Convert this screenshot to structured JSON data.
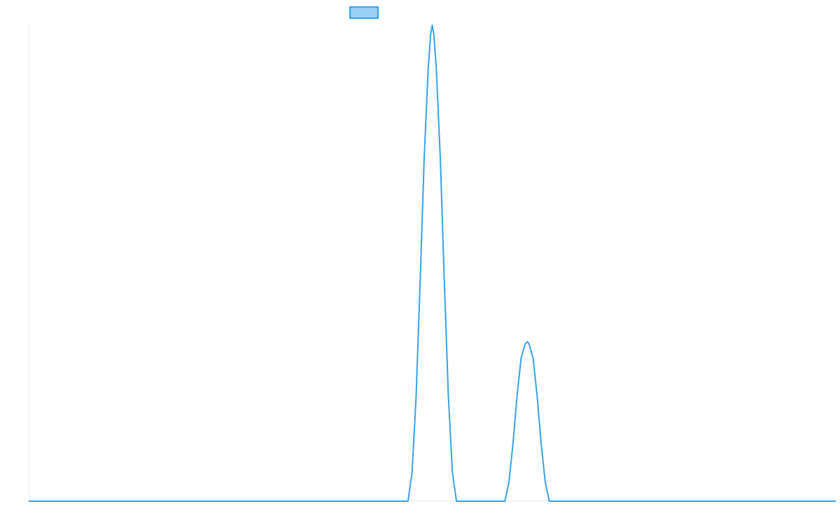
{
  "chart_data": {
    "type": "line",
    "title": "",
    "xlabel": "",
    "ylabel": "",
    "grid": false,
    "legend": "top-center",
    "xlim": [
      0,
      100
    ],
    "ylim": [
      0,
      100
    ],
    "series": [
      {
        "color": "#36a2eb",
        "fill_color": "#9ad0f5",
        "points": [
          [
            0,
            0
          ],
          [
            47,
            0
          ],
          [
            47.5,
            6
          ],
          [
            48,
            22
          ],
          [
            48.5,
            46
          ],
          [
            49,
            72
          ],
          [
            49.5,
            91
          ],
          [
            49.8,
            98
          ],
          [
            50,
            100
          ],
          [
            50.2,
            98
          ],
          [
            50.5,
            91
          ],
          [
            51,
            72
          ],
          [
            51.5,
            46
          ],
          [
            52,
            22
          ],
          [
            52.5,
            6
          ],
          [
            53,
            0
          ],
          [
            59,
            0
          ],
          [
            59.5,
            4
          ],
          [
            60,
            12
          ],
          [
            60.5,
            22
          ],
          [
            61,
            30
          ],
          [
            61.5,
            33
          ],
          [
            61.8,
            33.5
          ],
          [
            62,
            33
          ],
          [
            62.5,
            30
          ],
          [
            63,
            22
          ],
          [
            63.5,
            12
          ],
          [
            64,
            4
          ],
          [
            64.5,
            0
          ],
          [
            100,
            0
          ]
        ]
      }
    ]
  }
}
